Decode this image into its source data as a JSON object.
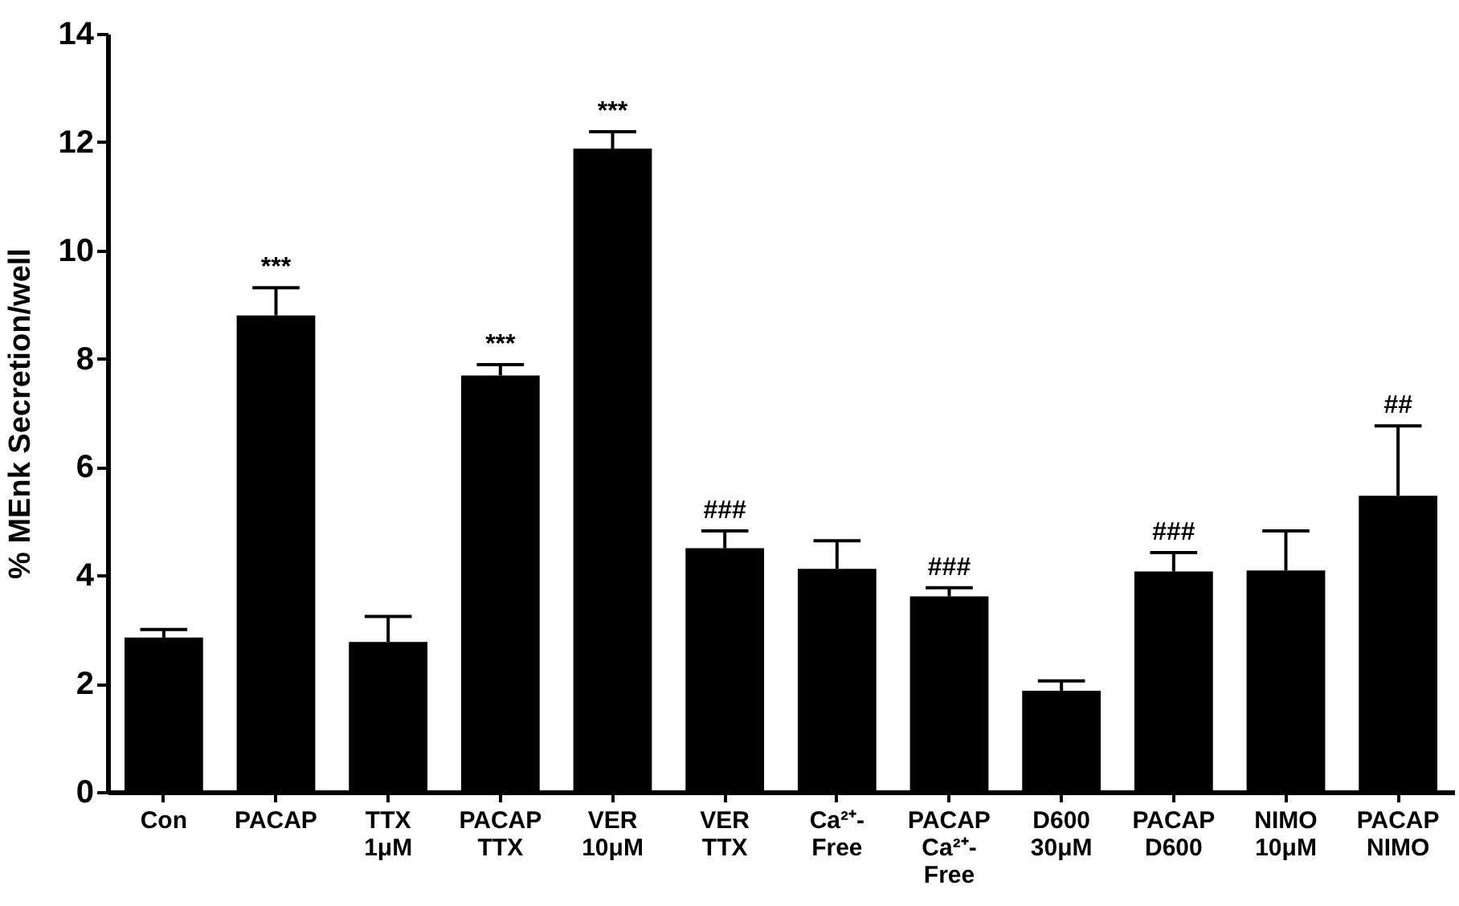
{
  "chart_data": {
    "type": "bar",
    "ylabel": "% MEnk Secretion/well",
    "categories": [
      "Con",
      "PACAP",
      "TTX\n1μM",
      "PACAP\nTTX",
      "VER\n10μM",
      "VER\nTTX",
      "Ca²⁺-\nFree",
      "PACAP\nCa²⁺-\nFree",
      "D600\n30μM",
      "PACAP\nD600",
      "NIMO\n10μM",
      "PACAP\nNIMO"
    ],
    "values": [
      2.85,
      8.8,
      2.77,
      7.69,
      11.88,
      4.5,
      4.12,
      3.61,
      1.87,
      4.07,
      4.09,
      5.47
    ],
    "errors": [
      [
        2.85,
        3.0
      ],
      [
        8.8,
        9.31
      ],
      [
        2.77,
        3.24
      ],
      [
        7.69,
        7.89
      ],
      [
        11.88,
        12.19
      ],
      [
        4.5,
        4.82
      ],
      [
        4.12,
        4.64
      ],
      [
        3.61,
        3.77
      ],
      [
        1.87,
        2.05
      ],
      [
        4.07,
        4.42
      ],
      [
        4.09,
        4.82
      ],
      [
        5.47,
        6.76
      ]
    ],
    "color": "#000000",
    "ylim": [
      0,
      14
    ],
    "yticks": [
      0,
      2,
      4,
      6,
      8,
      10,
      12,
      14
    ],
    "grid": false,
    "value_labels": [
      null,
      "***",
      null,
      "***",
      "***",
      "###",
      null,
      "###",
      null,
      "###",
      null,
      "##"
    ]
  }
}
